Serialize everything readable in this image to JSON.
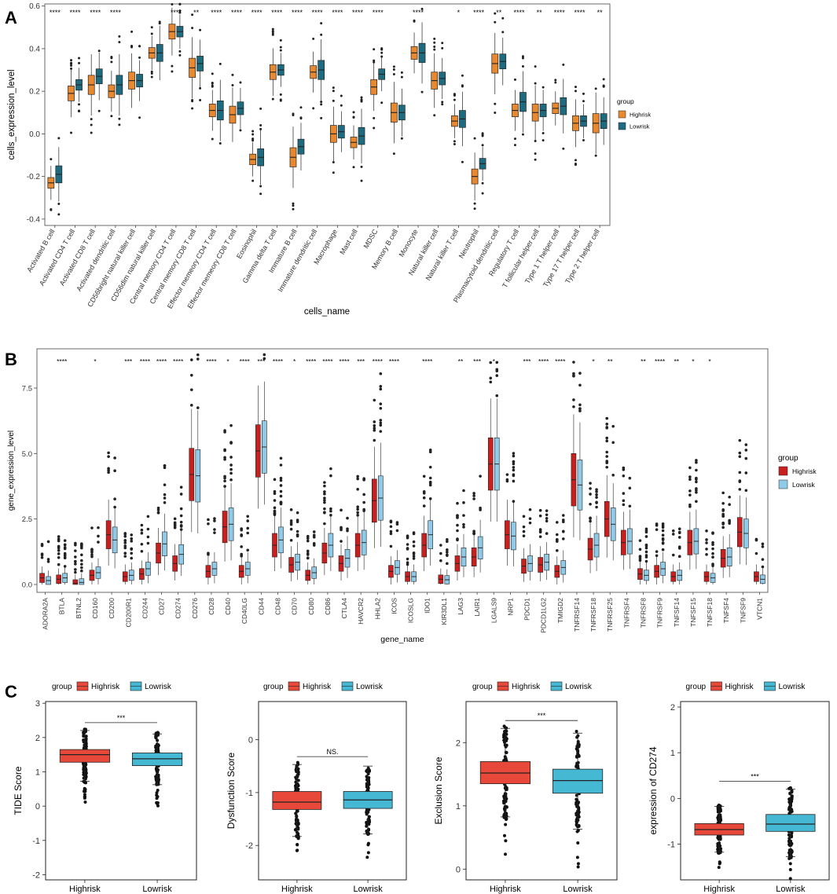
{
  "panel_labels": [
    "A",
    "B",
    "C"
  ],
  "chart_data": [
    {
      "id": "A",
      "type": "boxplot",
      "xlabel": "cells_name",
      "ylabel": "cells_expression_level",
      "ylim": [
        -0.43,
        0.61
      ],
      "yticks": [
        "-0.4",
        "-0.2",
        "0.0",
        "0.2",
        "0.4",
        "0.6"
      ],
      "legend": {
        "title": "group",
        "placement": "right",
        "entries": [
          "Highrisk",
          "Lowrisk"
        ]
      },
      "colors": {
        "Highrisk": "#e8882f",
        "Lowrisk": "#1e6b80"
      },
      "categories": [
        "Activated B cell",
        "Activated CD4 T cell",
        "Activated CD8 T cell",
        "Activated dendritic cell",
        "CD56bright natural killer cell",
        "CD56dim natural killer cell",
        "Central memory CD4 T cell",
        "Central memory CD8 T cell",
        "Effector memeory CD4 T cell",
        "Effector memeory CD8 T cell",
        "Eosinophil",
        "Gamma delta T cell",
        "Immature  B cell",
        "Immature dendritic cell",
        "Macrophage",
        "Mast cell",
        "MDSC",
        "Memory B cell",
        "Monocyte",
        "Natural killer cell",
        "Natural killer T cell",
        "Neutrophil",
        "Plasmacytoid dendritic cell",
        "Regulatory T cell",
        "T follicular helper cell",
        "Type 1 T helper cell",
        "Type 17 T helper cell",
        "Type 2 T helper cell"
      ],
      "significance": [
        "****",
        "****",
        "****",
        "****",
        "",
        "",
        "****",
        "**",
        "****",
        "****",
        "****",
        "****",
        "****",
        "****",
        "****",
        "****",
        "****",
        "",
        "****",
        "",
        "*",
        "****",
        "**",
        "****",
        "**",
        "****",
        "****",
        "**"
      ],
      "series": [
        {
          "name": "Highrisk",
          "medians": [
            -0.23,
            0.19,
            0.23,
            0.2,
            0.25,
            0.38,
            0.48,
            0.31,
            0.11,
            0.09,
            -0.12,
            0.29,
            -0.11,
            0.29,
            0.0,
            -0.04,
            0.22,
            0.1,
            0.38,
            0.25,
            0.06,
            -0.2,
            0.33,
            0.11,
            0.1,
            0.12,
            0.05,
            0.05
          ]
        },
        {
          "name": "Lowrisk",
          "medians": [
            -0.19,
            0.23,
            0.27,
            0.23,
            0.25,
            0.38,
            0.48,
            0.33,
            0.11,
            0.12,
            -0.11,
            0.3,
            -0.06,
            0.3,
            0.01,
            -0.01,
            0.28,
            0.1,
            0.38,
            0.26,
            0.07,
            -0.14,
            0.34,
            0.15,
            0.11,
            0.13,
            0.06,
            0.06
          ]
        }
      ]
    },
    {
      "id": "B",
      "type": "boxplot",
      "xlabel": "gene_name",
      "ylabel": "gene_expression_level",
      "ylim": [
        -0.3,
        9.0
      ],
      "yticks": [
        "0.0",
        "2.5",
        "5.0",
        "7.5"
      ],
      "legend": {
        "title": "group",
        "placement": "right",
        "entries": [
          "Highrisk",
          "Lowrisk"
        ]
      },
      "colors": {
        "Highrisk": "#c91f1f",
        "Lowrisk": "#8fcae8"
      },
      "categories": [
        "ADORA2A",
        "BTLA",
        "BTNL2",
        "CD160",
        "CD200",
        "CD200R1",
        "CD244",
        "CD27",
        "CD274",
        "CD276",
        "CD28",
        "CD40",
        "CD40LG",
        "CD44",
        "CD48",
        "CD70",
        "CD80",
        "CD86",
        "CTLA4",
        "HAVCR2",
        "HHLA2",
        "ICOS",
        "ICOSLG",
        "IDO1",
        "KIR3DL1",
        "LAG3",
        "LAIR1",
        "LGALS9",
        "NRP1",
        "PDCD1",
        "PDCD1LG2",
        "TMIGD2",
        "TNFRSF14",
        "TNFRSF18",
        "TNFRSF25",
        "TNFRSF4",
        "TNFRSF8",
        "TNFRSF9",
        "TNFSF14",
        "TNFSF15",
        "TNFSF18",
        "TNFSF4",
        "TNFSF9",
        "VTCN1"
      ],
      "significance": [
        "",
        "****",
        "",
        "*",
        "",
        "***",
        "****",
        "****",
        "****",
        "",
        "****",
        "*",
        "****",
        "***",
        "****",
        "*",
        "****",
        "****",
        "****",
        "***",
        "****",
        "****",
        "",
        "****",
        "",
        "**",
        "***",
        "*",
        "",
        "***",
        "****",
        "****",
        "",
        "*",
        "**",
        "",
        "**",
        "****",
        "**",
        "*",
        "*",
        "",
        "",
        ""
      ],
      "series": [
        {
          "name": "Highrisk",
          "medians": [
            0.25,
            0.2,
            0.05,
            0.35,
            1.9,
            0.3,
            0.4,
            1.2,
            0.8,
            4.2,
            0.5,
            2.2,
            0.5,
            5.1,
            1.5,
            0.75,
            0.35,
            1.2,
            0.8,
            1.5,
            3.2,
            0.5,
            0.3,
            1.5,
            0.2,
            0.8,
            1.05,
            4.6,
            1.9,
            0.7,
            0.75,
            0.5,
            4.0,
            1.35,
            2.5,
            1.6,
            0.4,
            0.5,
            0.3,
            1.6,
            0.3,
            1.0,
            2.0,
            0.3
          ]
        },
        {
          "name": "Lowrisk",
          "medians": [
            0.15,
            0.25,
            0.08,
            0.45,
            1.7,
            0.35,
            0.6,
            1.55,
            1.15,
            4.15,
            0.6,
            2.3,
            0.6,
            5.25,
            1.7,
            0.85,
            0.45,
            1.5,
            1.0,
            1.6,
            3.3,
            0.65,
            0.3,
            1.9,
            0.18,
            1.05,
            1.4,
            4.6,
            1.85,
            0.8,
            0.85,
            0.65,
            3.8,
            1.5,
            2.3,
            1.65,
            0.35,
            0.6,
            0.35,
            1.65,
            0.25,
            1.05,
            1.95,
            0.2
          ]
        }
      ]
    },
    {
      "id": "C1",
      "type": "boxplot",
      "ylabel": "TIDE Score",
      "ylim": [
        -2.15,
        3.05
      ],
      "yticks": [
        "-2",
        "-1",
        "0",
        "1",
        "2",
        "3"
      ],
      "legend": {
        "title": "group",
        "placement": "top",
        "entries": [
          "Highrisk",
          "Lowrisk"
        ]
      },
      "colors": {
        "Highrisk": "#e8483a",
        "Lowrisk": "#45b8d4"
      },
      "categories": [
        "Highrisk",
        "Lowrisk"
      ],
      "significance": "***",
      "series": [
        {
          "name": "Highrisk",
          "q1": 1.28,
          "median": 1.5,
          "q3": 1.65
        },
        {
          "name": "Lowrisk",
          "q1": 1.18,
          "median": 1.38,
          "q3": 1.55
        }
      ]
    },
    {
      "id": "C2",
      "type": "boxplot",
      "ylabel": "Dysfunction Score",
      "ylim": [
        -2.65,
        0.72
      ],
      "yticks": [
        "-2",
        "-1",
        "0"
      ],
      "legend": {
        "title": "group",
        "placement": "top",
        "entries": [
          "Highrisk",
          "Lowrisk"
        ]
      },
      "colors": {
        "Highrisk": "#e8483a",
        "Lowrisk": "#45b8d4"
      },
      "categories": [
        "Highrisk",
        "Lowrisk"
      ],
      "significance": "NS.",
      "series": [
        {
          "name": "Highrisk",
          "q1": -1.32,
          "median": -1.18,
          "q3": -0.98
        },
        {
          "name": "Lowrisk",
          "q1": -1.3,
          "median": -1.14,
          "q3": -0.98
        }
      ]
    },
    {
      "id": "C3",
      "type": "boxplot",
      "ylabel": "Exclusion Score",
      "ylim": [
        -0.17,
        2.65
      ],
      "yticks": [
        "0",
        "1",
        "2"
      ],
      "legend": {
        "title": "group",
        "placement": "top",
        "entries": [
          "Highrisk",
          "Lowrisk"
        ]
      },
      "colors": {
        "Highrisk": "#e8483a",
        "Lowrisk": "#45b8d4"
      },
      "categories": [
        "Highrisk",
        "Lowrisk"
      ],
      "significance": "***",
      "series": [
        {
          "name": "Highrisk",
          "q1": 1.35,
          "median": 1.52,
          "q3": 1.7
        },
        {
          "name": "Lowrisk",
          "q1": 1.2,
          "median": 1.4,
          "q3": 1.58
        }
      ]
    },
    {
      "id": "C4",
      "type": "boxplot",
      "ylabel": "expression of CD274",
      "ylim": [
        -1.78,
        2.12
      ],
      "yticks": [
        "-1",
        "0",
        "1",
        "2"
      ],
      "legend": {
        "title": "group",
        "placement": "top",
        "entries": [
          "Highrisk",
          "Lowrisk"
        ]
      },
      "colors": {
        "Highrisk": "#e8483a",
        "Lowrisk": "#45b8d4"
      },
      "categories": [
        "Highrisk",
        "Lowrisk"
      ],
      "significance": "***",
      "series": [
        {
          "name": "Highrisk",
          "q1": -0.8,
          "median": -0.68,
          "q3": -0.55
        },
        {
          "name": "Lowrisk",
          "q1": -0.72,
          "median": -0.56,
          "q3": -0.35
        }
      ]
    }
  ]
}
